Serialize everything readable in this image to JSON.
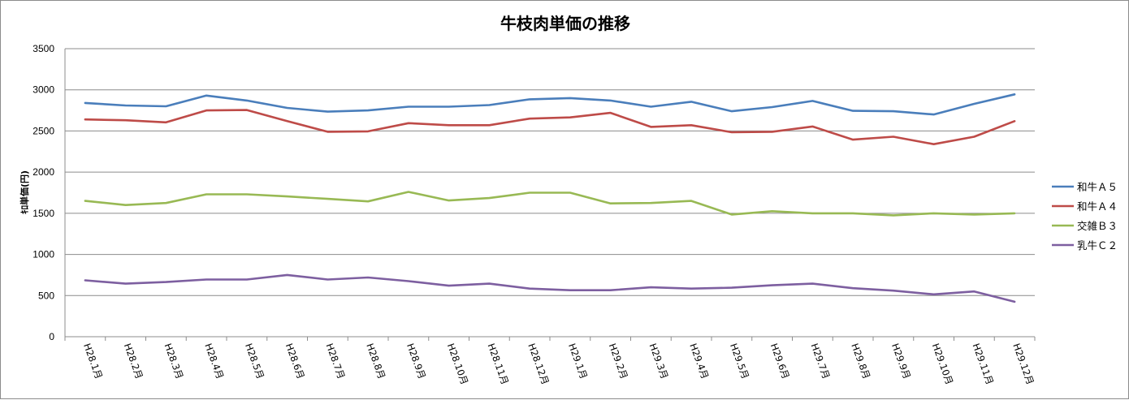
{
  "chart_data": {
    "type": "line",
    "title": "牛枝肉単価の推移",
    "ylabel": "ｷﾛ単価(円)",
    "xlabel": "",
    "ylim": [
      0,
      3500
    ],
    "yticks": [
      0,
      500,
      1000,
      1500,
      2000,
      2500,
      3000,
      3500
    ],
    "grid": true,
    "legend_position": "right",
    "categories": [
      "H28.1月",
      "H28.2月",
      "H28.3月",
      "H28.4月",
      "H28.5月",
      "H28.6月",
      "H28.7月",
      "H28.8月",
      "H28.9月",
      "H28.10月",
      "H28.11月",
      "H28.12月",
      "H29.1月",
      "H29.2月",
      "H29.3月",
      "H29.4月",
      "H29.5月",
      "H29.6月",
      "H29.7月",
      "H29.8月",
      "H29.9月",
      "H29.10月",
      "H29.11月",
      "H29.12月"
    ],
    "series": [
      {
        "name": "和牛Ａ５",
        "color": "#4a7ebb",
        "values": [
          2840,
          2810,
          2800,
          2930,
          2870,
          2780,
          2735,
          2750,
          2795,
          2795,
          2815,
          2885,
          2900,
          2870,
          2795,
          2855,
          2740,
          2790,
          2865,
          2745,
          2740,
          2700,
          2830,
          2945
        ]
      },
      {
        "name": "和牛Ａ４",
        "color": "#be4b48",
        "values": [
          2640,
          2630,
          2605,
          2750,
          2755,
          2620,
          2490,
          2495,
          2595,
          2570,
          2570,
          2650,
          2665,
          2720,
          2550,
          2570,
          2485,
          2490,
          2555,
          2395,
          2430,
          2340,
          2430,
          2620
        ]
      },
      {
        "name": "交雑Ｂ３",
        "color": "#98b954",
        "values": [
          1650,
          1600,
          1625,
          1730,
          1730,
          1705,
          1675,
          1645,
          1760,
          1655,
          1685,
          1750,
          1750,
          1620,
          1625,
          1650,
          1485,
          1525,
          1500,
          1500,
          1475,
          1500,
          1485,
          1500
        ]
      },
      {
        "name": "乳牛Ｃ２",
        "color": "#7d5fa0",
        "values": [
          685,
          645,
          665,
          695,
          695,
          750,
          695,
          720,
          675,
          620,
          645,
          585,
          565,
          565,
          600,
          585,
          595,
          625,
          645,
          590,
          560,
          515,
          550,
          425
        ]
      }
    ]
  }
}
